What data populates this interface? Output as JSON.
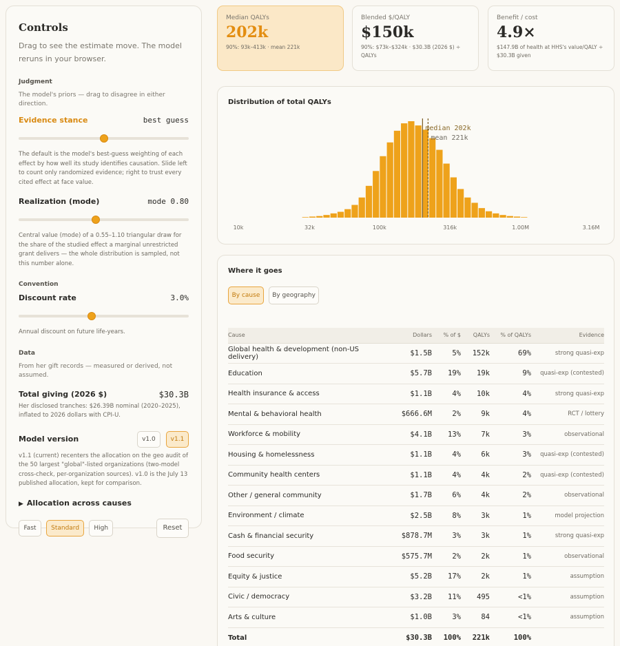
{
  "controls": {
    "title": "Controls",
    "intro": "Drag to see the estimate move. The model reruns in your browser.",
    "judgment": {
      "label": "Judgment",
      "sub": "The model's priors — drag to disagree in either direction.",
      "evidence_stance": {
        "label": "Evidence stance",
        "value": "best guess",
        "position": 0.5,
        "desc": "The default is the model's best-guess weighting of each effect by how well its study identifies causation. Slide left to count only randomized evidence; right to trust every cited effect at face value."
      },
      "realization": {
        "label": "Realization (mode)",
        "value": "mode 0.80",
        "position": 0.455,
        "desc": "Central value (mode) of a 0.55–1.10 triangular draw for the share of the studied effect a marginal unrestricted grant delivers — the whole distribution is sampled, not this number alone."
      }
    },
    "convention": {
      "label": "Convention",
      "discount_rate": {
        "label": "Discount rate",
        "value": "3.0%",
        "position": 0.43,
        "desc": "Annual discount on future life-years."
      }
    },
    "data": {
      "label": "Data",
      "sub": "From her gift records — measured or derived, not assumed.",
      "total_giving": {
        "label": "Total giving (2026 $)",
        "value": "$30.3B",
        "desc": "Her disclosed tranches: $26.39B nominal (2020–2025), inflated to 2026 dollars with CPI-U."
      },
      "model_version": {
        "label": "Model version",
        "options": [
          "v1.0",
          "v1.1"
        ],
        "selected": "v1.1",
        "desc": "v1.1 (current) recenters the allocation on the geo audit of the 50 largest \"global\"-listed organizations (two-model cross-check, per-organization sources). v1.0 is the July 13 published allocation, kept for comparison."
      }
    },
    "allocation_toggle": "Allocation across causes",
    "quality": {
      "options": [
        "Fast",
        "Standard",
        "High"
      ],
      "selected": "Standard"
    },
    "reset_label": "Reset"
  },
  "kpis": [
    {
      "label": "Median QALYs",
      "value": "202k",
      "sub": "90%: 93k–413k · mean 221k",
      "highlight": true
    },
    {
      "label": "Blended $/QALY",
      "value": "$150k",
      "sub": "90%: $73k–$324k · $30.3B (2026 $) ÷ QALYs",
      "highlight": false
    },
    {
      "label": "Benefit / cost",
      "value": "4.9×",
      "sub": "$147.9B of health at HHS's value/QALY ÷ $30.3B given",
      "highlight": false
    }
  ],
  "distribution": {
    "title": "Distribution of total QALYs",
    "median_label": "median 202k",
    "mean_label": "mean 221k",
    "median": 202000,
    "mean": 221000,
    "x_ticks": [
      {
        "label": "10k",
        "value": 10000
      },
      {
        "label": "32k",
        "value": 32000
      },
      {
        "label": "100k",
        "value": 100000
      },
      {
        "label": "316k",
        "value": 316000
      },
      {
        "label": "1.00M",
        "value": 1000000
      },
      {
        "label": "3.16M",
        "value": 3160000
      }
    ],
    "accent": "#eea21b"
  },
  "chart_data": {
    "type": "bar",
    "title": "Distribution of total QALYs",
    "xscale": "log",
    "xlim": [
      10000,
      3160000
    ],
    "bin_width_log10": 0.05,
    "bin_start_log10": 4.45,
    "values": [
      0.5,
      1,
      1.5,
      2.5,
      4,
      5.5,
      8,
      12,
      19,
      30,
      44,
      58,
      71,
      82,
      89,
      91,
      87,
      83,
      75,
      64,
      51,
      38,
      27,
      19,
      14,
      9,
      6,
      4,
      2.5,
      1.5,
      1,
      0.5
    ],
    "median": 202000,
    "mean": 221000
  },
  "where": {
    "title": "Where it goes",
    "tabs": [
      "By cause",
      "By geography"
    ],
    "selected_tab": "By cause",
    "columns": [
      "Cause",
      "Dollars",
      "% of $",
      "QALYs",
      "% of QALYs",
      "Evidence"
    ],
    "rows": [
      [
        "Global health & development (non-US delivery)",
        "$1.5B",
        "5%",
        "152k",
        "69%",
        "strong quasi-exp"
      ],
      [
        "Education",
        "$5.7B",
        "19%",
        "19k",
        "9%",
        "quasi-exp (contested)"
      ],
      [
        "Health insurance & access",
        "$1.1B",
        "4%",
        "10k",
        "4%",
        "strong quasi-exp"
      ],
      [
        "Mental & behavioral health",
        "$666.6M",
        "2%",
        "9k",
        "4%",
        "RCT / lottery"
      ],
      [
        "Workforce & mobility",
        "$4.1B",
        "13%",
        "7k",
        "3%",
        "observational"
      ],
      [
        "Housing & homelessness",
        "$1.1B",
        "4%",
        "6k",
        "3%",
        "quasi-exp (contested)"
      ],
      [
        "Community health centers",
        "$1.1B",
        "4%",
        "4k",
        "2%",
        "quasi-exp (contested)"
      ],
      [
        "Other / general community",
        "$1.7B",
        "6%",
        "4k",
        "2%",
        "observational"
      ],
      [
        "Environment / climate",
        "$2.5B",
        "8%",
        "3k",
        "1%",
        "model projection"
      ],
      [
        "Cash & financial security",
        "$878.7M",
        "3%",
        "3k",
        "1%",
        "strong quasi-exp"
      ],
      [
        "Food security",
        "$575.7M",
        "2%",
        "2k",
        "1%",
        "observational"
      ],
      [
        "Equity & justice",
        "$5.2B",
        "17%",
        "2k",
        "1%",
        "assumption"
      ],
      [
        "Civic / democracy",
        "$3.2B",
        "11%",
        "495",
        "<1%",
        "assumption"
      ],
      [
        "Arts & culture",
        "$1.0B",
        "3%",
        "84",
        "<1%",
        "assumption"
      ]
    ],
    "total": [
      "Total",
      "$30.3B",
      "100%",
      "221k",
      "100%",
      ""
    ]
  }
}
